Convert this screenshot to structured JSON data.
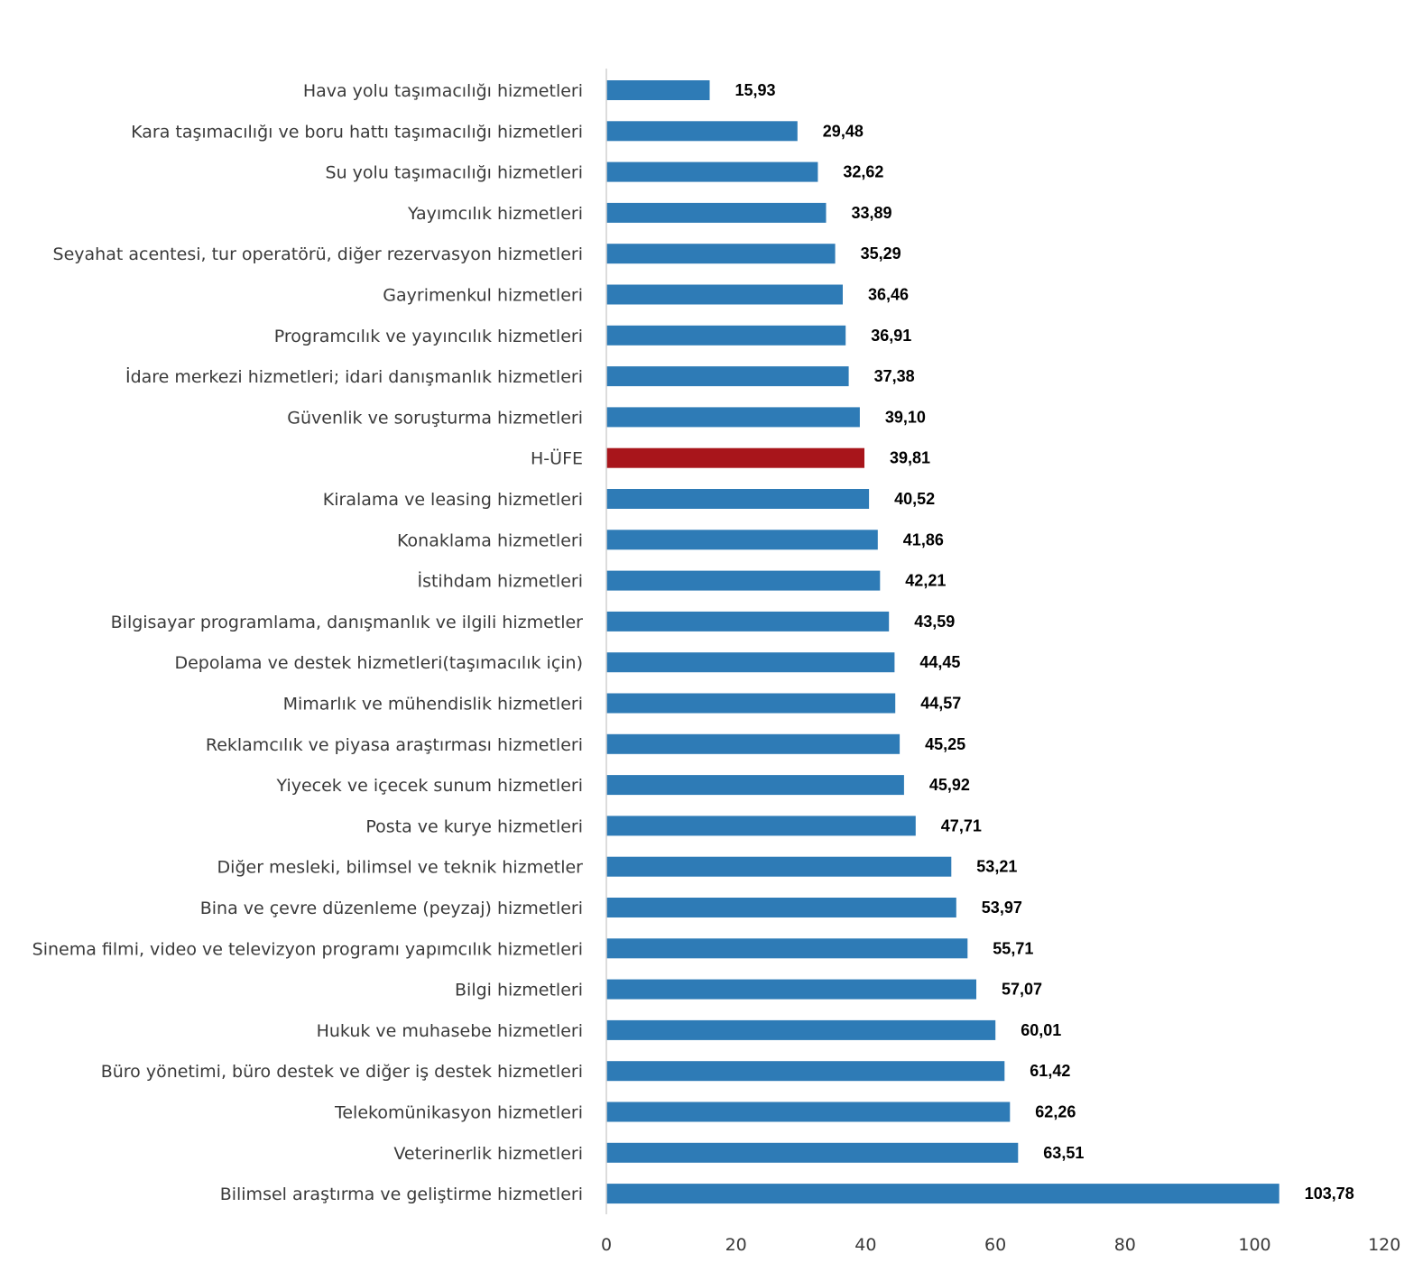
{
  "chart_data": {
    "type": "bar",
    "orientation": "horizontal",
    "title": "",
    "xlabel": "",
    "ylabel": "",
    "xlim": [
      0,
      120
    ],
    "ticks": [
      0,
      20,
      40,
      60,
      80,
      100,
      120
    ],
    "grid": false,
    "legend": "none",
    "colors": {
      "default": "#2E7BB6",
      "highlight": "#A8151B"
    },
    "highlight_category": "H-ÜFE",
    "categories": [
      "Hava yolu taşımacılığı hizmetleri",
      "Kara taşımacılığı ve boru hattı taşımacılığı hizmetleri",
      "Su yolu taşımacılığı hizmetleri",
      "Yayımcılık hizmetleri",
      "Seyahat acentesi, tur operatörü, diğer rezervasyon hizmetleri",
      "Gayrimenkul hizmetleri",
      "Programcılık ve yayıncılık hizmetleri",
      "İdare merkezi hizmetleri; idari danışmanlık hizmetleri",
      "Güvenlik ve soruşturma hizmetleri",
      "H-ÜFE",
      "Kiralama ve leasing hizmetleri",
      "Konaklama hizmetleri",
      "İstihdam hizmetleri",
      "Bilgisayar programlama, danışmanlık ve ilgili hizmetler",
      "Depolama ve destek hizmetleri(taşımacılık için)",
      "Mimarlık ve mühendislik hizmetleri",
      "Reklamcılık ve piyasa araştırması hizmetleri",
      "Yiyecek ve içecek sunum hizmetleri",
      "Posta ve kurye hizmetleri",
      "Diğer mesleki, bilimsel ve teknik hizmetler",
      "Bina ve çevre düzenleme (peyzaj) hizmetleri",
      "Sinema filmi, video ve televizyon programı yapımcılık hizmetleri",
      "Bilgi hizmetleri",
      "Hukuk ve muhasebe hizmetleri",
      "Büro yönetimi, büro destek ve diğer iş destek hizmetleri",
      "Telekomünikasyon hizmetleri",
      "Veterinerlik hizmetleri",
      "Bilimsel araştırma ve geliştirme hizmetleri"
    ],
    "values": [
      15.93,
      29.48,
      32.62,
      33.89,
      35.29,
      36.46,
      36.91,
      37.38,
      39.1,
      39.81,
      40.52,
      41.86,
      42.21,
      43.59,
      44.45,
      44.57,
      45.25,
      45.92,
      47.71,
      53.21,
      53.97,
      55.71,
      57.07,
      60.01,
      61.42,
      62.26,
      63.51,
      103.78
    ],
    "value_labels": [
      "15,93",
      "29,48",
      "32,62",
      "33,89",
      "35,29",
      "36,46",
      "36,91",
      "37,38",
      "39,10",
      "39,81",
      "40,52",
      "41,86",
      "42,21",
      "43,59",
      "44,45",
      "44,57",
      "45,25",
      "45,92",
      "47,71",
      "53,21",
      "53,97",
      "55,71",
      "57,07",
      "60,01",
      "61,42",
      "62,26",
      "63,51",
      "103,78"
    ]
  }
}
